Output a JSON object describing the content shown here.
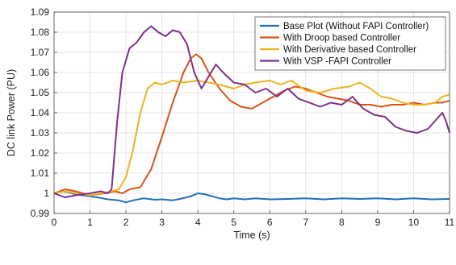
{
  "chart_data": {
    "type": "line",
    "xlabel": "Time (s)",
    "ylabel": "DC link Power (PU)",
    "xlim": [
      0,
      11
    ],
    "ylim": [
      0.99,
      1.09
    ],
    "x_ticks": [
      0,
      1,
      2,
      3,
      4,
      5,
      6,
      7,
      8,
      9,
      10,
      11
    ],
    "y_ticks": [
      0.99,
      1.0,
      1.01,
      1.02,
      1.03,
      1.04,
      1.05,
      1.06,
      1.07,
      1.08,
      1.09
    ],
    "x_tick_labels": [
      "0",
      "1",
      "2",
      "3",
      "4",
      "5",
      "6",
      "7",
      "8",
      "9",
      "10",
      "11"
    ],
    "y_tick_labels": [
      "0.99",
      "1",
      "1.01",
      "1.02",
      "1.03",
      "1.04",
      "1.05",
      "1.06",
      "1.07",
      "1.08",
      "1.09"
    ],
    "grid": true,
    "legend_position": "top-right",
    "series": [
      {
        "name": "Base Plot (Without FAPI Controller)",
        "color": "#1f6fb5",
        "points": [
          [
            0,
            1.0
          ],
          [
            0.2,
            1.001
          ],
          [
            0.4,
            1.0005
          ],
          [
            0.6,
            0.9995
          ],
          [
            0.8,
            0.999
          ],
          [
            1.0,
            0.9985
          ],
          [
            1.2,
            0.998
          ],
          [
            1.5,
            0.997
          ],
          [
            1.8,
            0.9965
          ],
          [
            2.0,
            0.9955
          ],
          [
            2.2,
            0.9965
          ],
          [
            2.5,
            0.9975
          ],
          [
            2.8,
            0.9968
          ],
          [
            3.0,
            0.997
          ],
          [
            3.3,
            0.9965
          ],
          [
            3.5,
            0.9972
          ],
          [
            3.8,
            0.9985
          ],
          [
            4.0,
            1.0
          ],
          [
            4.2,
            0.9995
          ],
          [
            4.4,
            0.9985
          ],
          [
            4.6,
            0.9975
          ],
          [
            4.8,
            0.997
          ],
          [
            5.0,
            0.9975
          ],
          [
            5.3,
            0.997
          ],
          [
            5.6,
            0.9975
          ],
          [
            6.0,
            0.997
          ],
          [
            6.5,
            0.9972
          ],
          [
            7.0,
            0.9975
          ],
          [
            7.5,
            0.997
          ],
          [
            8.0,
            0.9975
          ],
          [
            8.5,
            0.9972
          ],
          [
            9.0,
            0.9975
          ],
          [
            9.5,
            0.997
          ],
          [
            10.0,
            0.9975
          ],
          [
            10.5,
            0.997
          ],
          [
            11.0,
            0.9972
          ]
        ]
      },
      {
        "name": "With Droop based Controller",
        "color": "#d95319",
        "points": [
          [
            0,
            1.0
          ],
          [
            0.3,
            1.002
          ],
          [
            0.6,
            1.001
          ],
          [
            1.0,
            0.999
          ],
          [
            1.4,
            1.0
          ],
          [
            1.7,
            1.001
          ],
          [
            1.9,
            1.0
          ],
          [
            2.1,
            1.002
          ],
          [
            2.4,
            1.003
          ],
          [
            2.7,
            1.012
          ],
          [
            3.0,
            1.028
          ],
          [
            3.3,
            1.045
          ],
          [
            3.6,
            1.06
          ],
          [
            3.8,
            1.067
          ],
          [
            3.95,
            1.069
          ],
          [
            4.1,
            1.067
          ],
          [
            4.3,
            1.06
          ],
          [
            4.6,
            1.052
          ],
          [
            4.9,
            1.046
          ],
          [
            5.2,
            1.043
          ],
          [
            5.5,
            1.042
          ],
          [
            5.8,
            1.045
          ],
          [
            6.1,
            1.048
          ],
          [
            6.4,
            1.051
          ],
          [
            6.7,
            1.053
          ],
          [
            7.0,
            1.052
          ],
          [
            7.3,
            1.05
          ],
          [
            7.6,
            1.048
          ],
          [
            7.9,
            1.047
          ],
          [
            8.2,
            1.046
          ],
          [
            8.5,
            1.044
          ],
          [
            8.8,
            1.044
          ],
          [
            9.1,
            1.043
          ],
          [
            9.4,
            1.044
          ],
          [
            9.7,
            1.044
          ],
          [
            10.0,
            1.045
          ],
          [
            10.3,
            1.044
          ],
          [
            10.6,
            1.045
          ],
          [
            10.8,
            1.045
          ],
          [
            11.0,
            1.046
          ]
        ]
      },
      {
        "name": "With Derivative based Controller",
        "color": "#edb120",
        "points": [
          [
            0,
            1.0
          ],
          [
            0.3,
            1.001
          ],
          [
            0.6,
            1.0
          ],
          [
            1.0,
            0.999
          ],
          [
            1.3,
            1.0
          ],
          [
            1.6,
            1.001
          ],
          [
            1.8,
            1.002
          ],
          [
            2.0,
            1.008
          ],
          [
            2.2,
            1.022
          ],
          [
            2.4,
            1.04
          ],
          [
            2.6,
            1.052
          ],
          [
            2.8,
            1.055
          ],
          [
            3.0,
            1.054
          ],
          [
            3.3,
            1.056
          ],
          [
            3.6,
            1.055
          ],
          [
            4.0,
            1.056
          ],
          [
            4.3,
            1.055
          ],
          [
            4.6,
            1.054
          ],
          [
            5.0,
            1.052
          ],
          [
            5.3,
            1.054
          ],
          [
            5.6,
            1.055
          ],
          [
            6.0,
            1.056
          ],
          [
            6.3,
            1.054
          ],
          [
            6.6,
            1.056
          ],
          [
            7.0,
            1.051
          ],
          [
            7.4,
            1.05
          ],
          [
            7.8,
            1.052
          ],
          [
            8.2,
            1.053
          ],
          [
            8.5,
            1.055
          ],
          [
            8.8,
            1.052
          ],
          [
            9.1,
            1.048
          ],
          [
            9.4,
            1.047
          ],
          [
            9.7,
            1.045
          ],
          [
            10.0,
            1.044
          ],
          [
            10.3,
            1.044
          ],
          [
            10.6,
            1.045
          ],
          [
            10.8,
            1.048
          ],
          [
            11.0,
            1.049
          ]
        ]
      },
      {
        "name": "With VSP -FAPI Controller",
        "color": "#7e2f8e",
        "points": [
          [
            0,
            1.0
          ],
          [
            0.3,
            0.998
          ],
          [
            0.6,
            0.999
          ],
          [
            1.0,
            1.0
          ],
          [
            1.3,
            1.001
          ],
          [
            1.5,
            1.0
          ],
          [
            1.6,
            1.002
          ],
          [
            1.75,
            1.035
          ],
          [
            1.9,
            1.06
          ],
          [
            2.1,
            1.072
          ],
          [
            2.3,
            1.075
          ],
          [
            2.5,
            1.08
          ],
          [
            2.7,
            1.083
          ],
          [
            2.9,
            1.08
          ],
          [
            3.1,
            1.078
          ],
          [
            3.3,
            1.081
          ],
          [
            3.5,
            1.08
          ],
          [
            3.7,
            1.074
          ],
          [
            3.9,
            1.06
          ],
          [
            4.1,
            1.052
          ],
          [
            4.3,
            1.058
          ],
          [
            4.5,
            1.064
          ],
          [
            4.7,
            1.06
          ],
          [
            5.0,
            1.055
          ],
          [
            5.3,
            1.054
          ],
          [
            5.6,
            1.05
          ],
          [
            5.9,
            1.052
          ],
          [
            6.2,
            1.048
          ],
          [
            6.5,
            1.052
          ],
          [
            6.8,
            1.047
          ],
          [
            7.1,
            1.045
          ],
          [
            7.4,
            1.043
          ],
          [
            7.7,
            1.045
          ],
          [
            8.0,
            1.044
          ],
          [
            8.3,
            1.048
          ],
          [
            8.6,
            1.042
          ],
          [
            8.9,
            1.039
          ],
          [
            9.2,
            1.038
          ],
          [
            9.5,
            1.033
          ],
          [
            9.8,
            1.031
          ],
          [
            10.1,
            1.03
          ],
          [
            10.4,
            1.032
          ],
          [
            10.6,
            1.036
          ],
          [
            10.8,
            1.04
          ],
          [
            10.9,
            1.036
          ],
          [
            11.0,
            1.03
          ]
        ]
      }
    ]
  }
}
